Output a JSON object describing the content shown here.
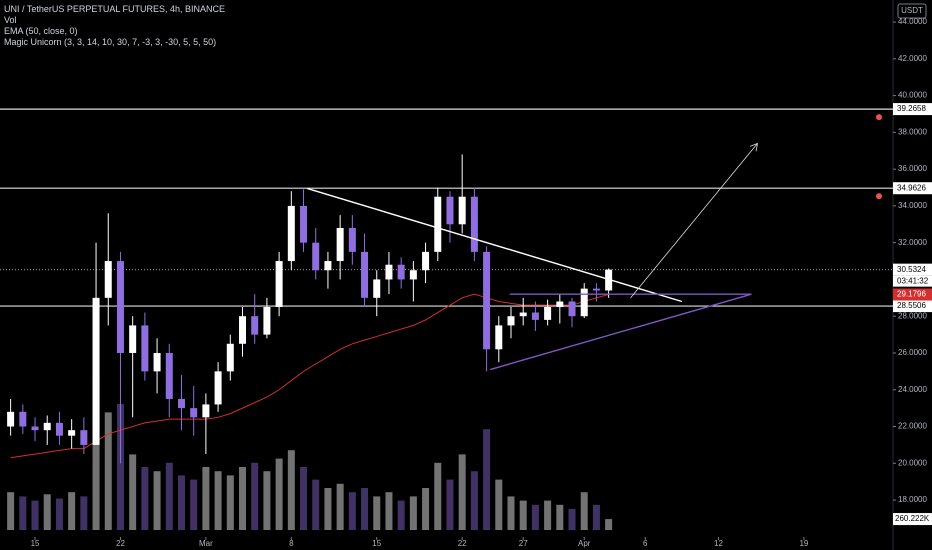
{
  "chart_data": {
    "type": "candlestick",
    "title": "UNI / TetherUS PERPETUAL FUTURES, 4h, BINANCE",
    "indicators": [
      "Vol",
      "EMA (50, close, 0)",
      "Magic Unicorn (3, 3, 14, 10, 30, 7, -3, 3, -30, 5, 5, 50)"
    ],
    "currency": "USDT",
    "x": [
      44,
      45,
      46,
      47,
      48,
      49,
      50,
      51,
      52,
      53,
      54,
      55,
      56,
      57,
      58,
      59,
      60,
      61,
      62,
      63,
      64,
      65,
      66,
      67,
      68,
      69,
      70,
      71,
      72,
      73,
      74,
      75,
      76,
      77,
      78,
      79,
      80,
      81,
      82,
      83,
      84,
      85,
      86,
      87,
      88,
      89,
      90,
      91,
      92,
      93
    ],
    "open": [
      22.0,
      22.8,
      22.0,
      21.8,
      22.2,
      21.5,
      21.8,
      21.0,
      29.0,
      31.0,
      26.0,
      27.5,
      25.0,
      26.0,
      23.5,
      23.0,
      22.5,
      23.2,
      25.0,
      26.5,
      28.0,
      27.0,
      28.5,
      31.0,
      34.0,
      32.0,
      30.5,
      31.0,
      32.8,
      31.5,
      29.0,
      30.0,
      30.8,
      30.0,
      30.5,
      31.5,
      34.5,
      33.0,
      34.5,
      31.5,
      26.2,
      27.5,
      28.0,
      28.2,
      27.8,
      28.5,
      28.8,
      28.0,
      29.5,
      29.4
    ],
    "high": [
      23.5,
      23.2,
      22.5,
      22.6,
      22.8,
      22.4,
      22.5,
      32.0,
      33.6,
      31.5,
      28.0,
      28.2,
      26.8,
      26.5,
      24.8,
      24.2,
      23.8,
      25.5,
      27.0,
      28.5,
      29.2,
      29.0,
      31.5,
      34.8,
      34.9,
      32.8,
      31.5,
      33.5,
      33.5,
      32.5,
      30.5,
      31.5,
      31.2,
      31.0,
      32.0,
      35.0,
      34.8,
      36.8,
      35.0,
      31.8,
      28.0,
      28.5,
      29.0,
      28.8,
      28.9,
      29.2,
      29.0,
      29.8,
      29.8,
      30.6
    ],
    "low": [
      21.5,
      21.6,
      21.2,
      21.0,
      21.0,
      20.8,
      20.5,
      21.0,
      27.5,
      20.0,
      22.5,
      24.5,
      23.8,
      22.5,
      21.8,
      21.5,
      20.5,
      22.8,
      24.5,
      25.8,
      26.5,
      26.8,
      28.0,
      30.5,
      31.5,
      30.0,
      29.5,
      30.0,
      30.8,
      28.5,
      28.0,
      29.2,
      29.5,
      28.8,
      29.8,
      31.0,
      32.0,
      32.5,
      31.0,
      25.0,
      25.5,
      26.8,
      27.5,
      27.2,
      27.5,
      27.6,
      27.4,
      27.9,
      28.8,
      29.0
    ],
    "close": [
      22.8,
      22.0,
      21.8,
      22.2,
      21.5,
      21.8,
      21.0,
      29.0,
      31.0,
      26.0,
      27.5,
      25.0,
      26.0,
      23.5,
      23.0,
      22.5,
      23.2,
      25.0,
      26.5,
      28.0,
      27.0,
      28.5,
      31.0,
      34.0,
      32.0,
      30.5,
      31.0,
      32.8,
      31.5,
      29.0,
      30.0,
      30.8,
      30.0,
      30.5,
      31.5,
      34.5,
      33.0,
      34.5,
      31.5,
      26.2,
      27.5,
      28.0,
      28.2,
      27.8,
      28.5,
      28.8,
      28.0,
      29.5,
      29.4,
      30.5324
    ],
    "volume": [
      900,
      800,
      700,
      850,
      750,
      900,
      800,
      3600,
      2800,
      3000,
      1800,
      1500,
      1400,
      1600,
      1300,
      1200,
      1500,
      1400,
      1300,
      1500,
      1600,
      1400,
      1700,
      1900,
      1500,
      1200,
      1000,
      1100,
      900,
      1000,
      800,
      900,
      700,
      800,
      1000,
      1600,
      1200,
      1800,
      1400,
      2400,
      1200,
      800,
      700,
      600,
      700,
      600,
      500,
      900,
      600,
      260.222
    ],
    "ema": [
      20.3,
      20.4,
      20.5,
      20.6,
      20.7,
      20.8,
      20.8,
      21.2,
      21.6,
      21.8,
      22.0,
      22.2,
      22.3,
      22.4,
      22.4,
      22.4,
      22.4,
      22.5,
      22.7,
      23.0,
      23.3,
      23.6,
      24.0,
      24.5,
      25.0,
      25.4,
      25.8,
      26.2,
      26.5,
      26.7,
      26.9,
      27.1,
      27.3,
      27.5,
      27.8,
      28.2,
      28.6,
      29.0,
      29.2,
      29.0,
      28.8,
      28.7,
      28.6,
      28.6,
      28.6,
      28.6,
      28.6,
      28.8,
      29.0,
      29.1796
    ],
    "up_color": "#ffffff",
    "down_color": "#8f6fe0",
    "ema_color": "#d32f2f",
    "drawing_color": "#7e57c2",
    "xlim": [
      43.13,
      116.3
    ],
    "xticks": [
      {
        "value": 46,
        "label": "15"
      },
      {
        "value": 53,
        "label": "22"
      },
      {
        "value": 60,
        "label": "Mar"
      },
      {
        "value": 67,
        "label": "8"
      },
      {
        "value": 74,
        "label": "15"
      },
      {
        "value": 81,
        "label": "22"
      },
      {
        "value": 86,
        "label": "27"
      },
      {
        "value": 91,
        "label": "Apr"
      },
      {
        "value": 96,
        "label": "6"
      },
      {
        "value": 102,
        "label": "12"
      },
      {
        "value": 109,
        "label": "19"
      }
    ],
    "ylim": [
      15.99,
      45.2
    ],
    "yticks": [
      {
        "value": 18,
        "label": "18.0000"
      },
      {
        "value": 20,
        "label": "20.0000"
      },
      {
        "value": 22,
        "label": "22.0000"
      },
      {
        "value": 24,
        "label": "24.0000"
      },
      {
        "value": 26,
        "label": "26.0000"
      },
      {
        "value": 28,
        "label": "28.0000"
      },
      {
        "value": 30,
        "label": "30.0000"
      },
      {
        "value": 32,
        "label": "32.0000"
      },
      {
        "value": 34,
        "label": "34.0000"
      },
      {
        "value": 36,
        "label": "36.0000"
      },
      {
        "value": 38,
        "label": "38.0000"
      },
      {
        "value": 40,
        "label": "40.0000"
      },
      {
        "value": 42,
        "label": "42.0000"
      },
      {
        "value": 44,
        "label": "44.0000"
      }
    ],
    "levels": [
      39.2658,
      34.9626,
      28.5506
    ],
    "last_price": 30.5324,
    "countdown": "03:41:32",
    "ema_last": 29.1796,
    "volume_label": {
      "value": 260.222,
      "label": "260.222K"
    },
    "trendlines": [
      [
        [
          68.3,
          34.95
        ],
        [
          99.0,
          28.8
        ]
      ],
      [
        [
          83.3,
          25.1
        ],
        [
          104.7,
          29.2
        ]
      ],
      [
        [
          84.9,
          29.2
        ],
        [
          104.7,
          29.2
        ]
      ]
    ],
    "arrow": [
      [
        94.8,
        29.0
      ],
      [
        105.2,
        37.4
      ]
    ]
  }
}
